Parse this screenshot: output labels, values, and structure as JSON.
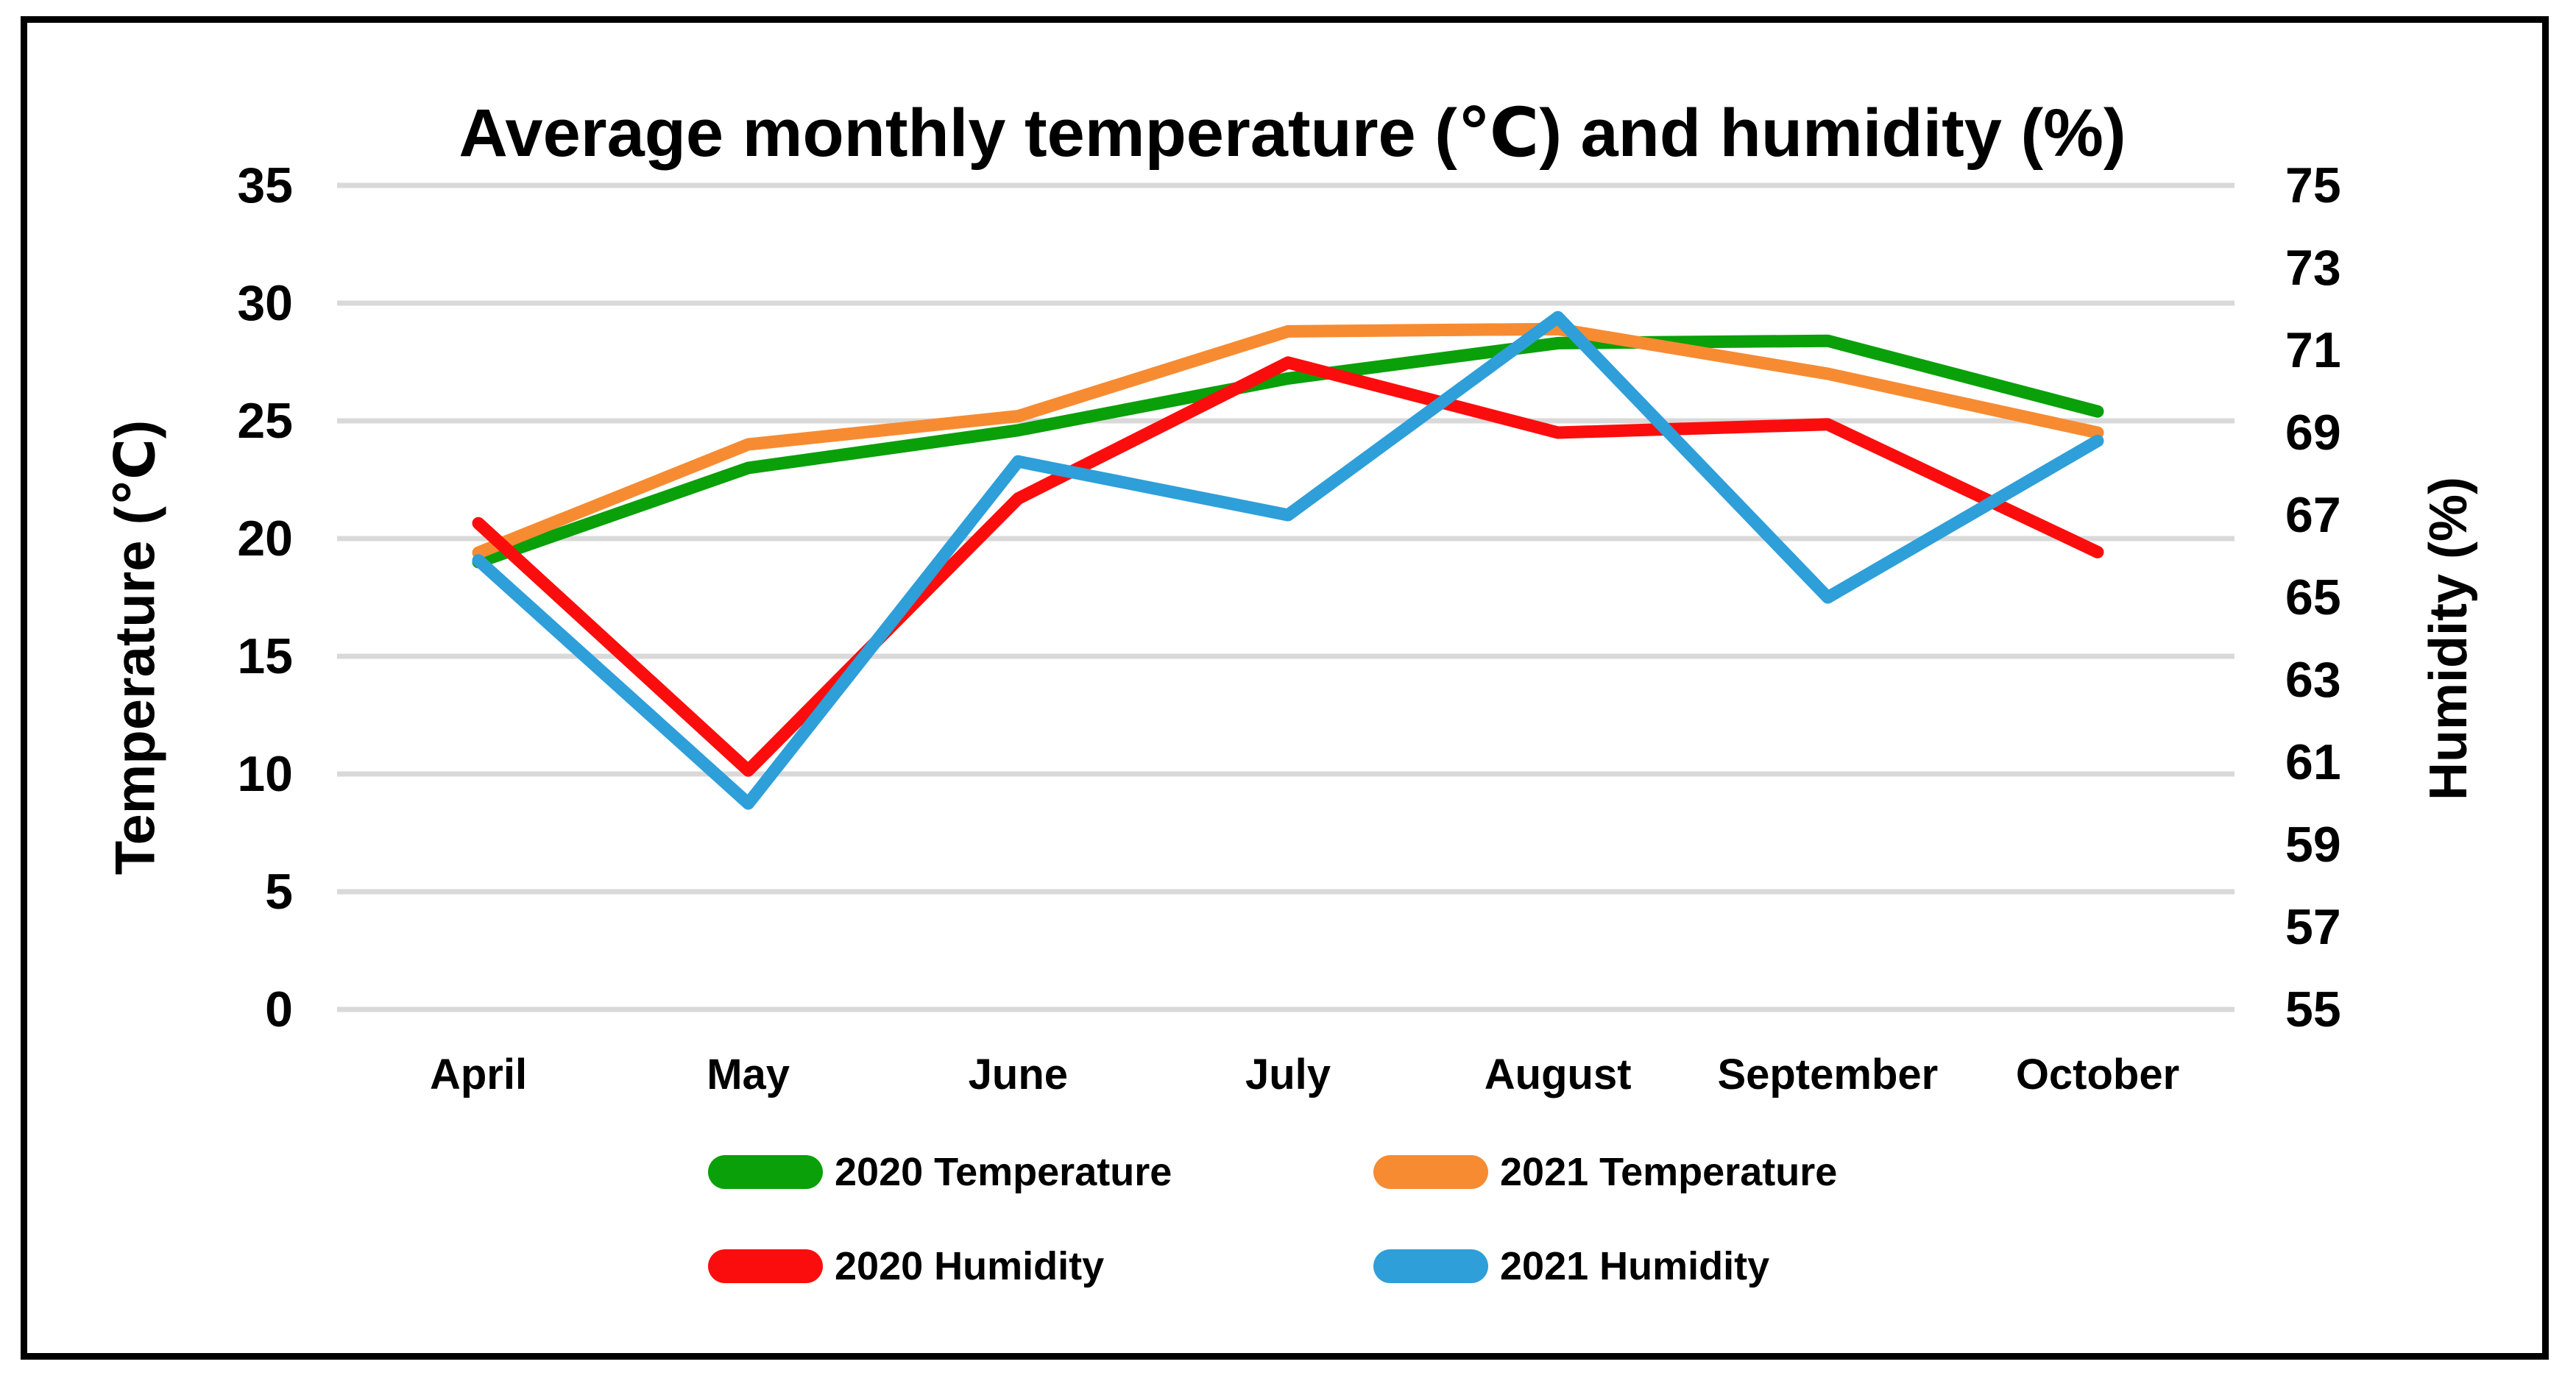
{
  "chart_data": {
    "type": "line",
    "title": "Average monthly temperature (℃) and humidity (%)",
    "ylabel_left": "Temperature (℃)",
    "ylabel_right": "Humidity (%)",
    "categories": [
      "April",
      "May",
      "June",
      "July",
      "August",
      "September",
      "October"
    ],
    "left_axis": {
      "min": 0,
      "max": 35,
      "step": 5,
      "ticks": [
        35,
        30,
        25,
        20,
        15,
        10,
        5,
        0
      ]
    },
    "right_axis": {
      "min": 55,
      "max": 75,
      "step": 2,
      "ticks": [
        75,
        73,
        71,
        69,
        67,
        65,
        63,
        61,
        59,
        57,
        55
      ]
    },
    "grid": true,
    "grid_color": "#d9d9d9",
    "legend_position": "bottom",
    "series": [
      {
        "name": "2020 Temperature",
        "axis": "left",
        "color": "#0aa00a",
        "values": [
          19.0,
          23.0,
          24.6,
          26.8,
          28.3,
          28.4,
          25.4
        ]
      },
      {
        "name": "2021 Temperature",
        "axis": "left",
        "color": "#f78b32",
        "values": [
          19.4,
          24.0,
          25.2,
          28.8,
          28.9,
          27.0,
          24.5
        ]
      },
      {
        "name": "2020 Humidity",
        "axis": "right",
        "color": "#fc0d0d",
        "values": [
          66.8,
          60.8,
          67.4,
          70.7,
          69.0,
          69.2,
          66.1
        ]
      },
      {
        "name": "2021 Humidity",
        "axis": "right",
        "color": "#2e9fd9",
        "values": [
          65.9,
          60.0,
          68.3,
          67.0,
          71.8,
          65.0,
          68.8
        ]
      }
    ]
  }
}
